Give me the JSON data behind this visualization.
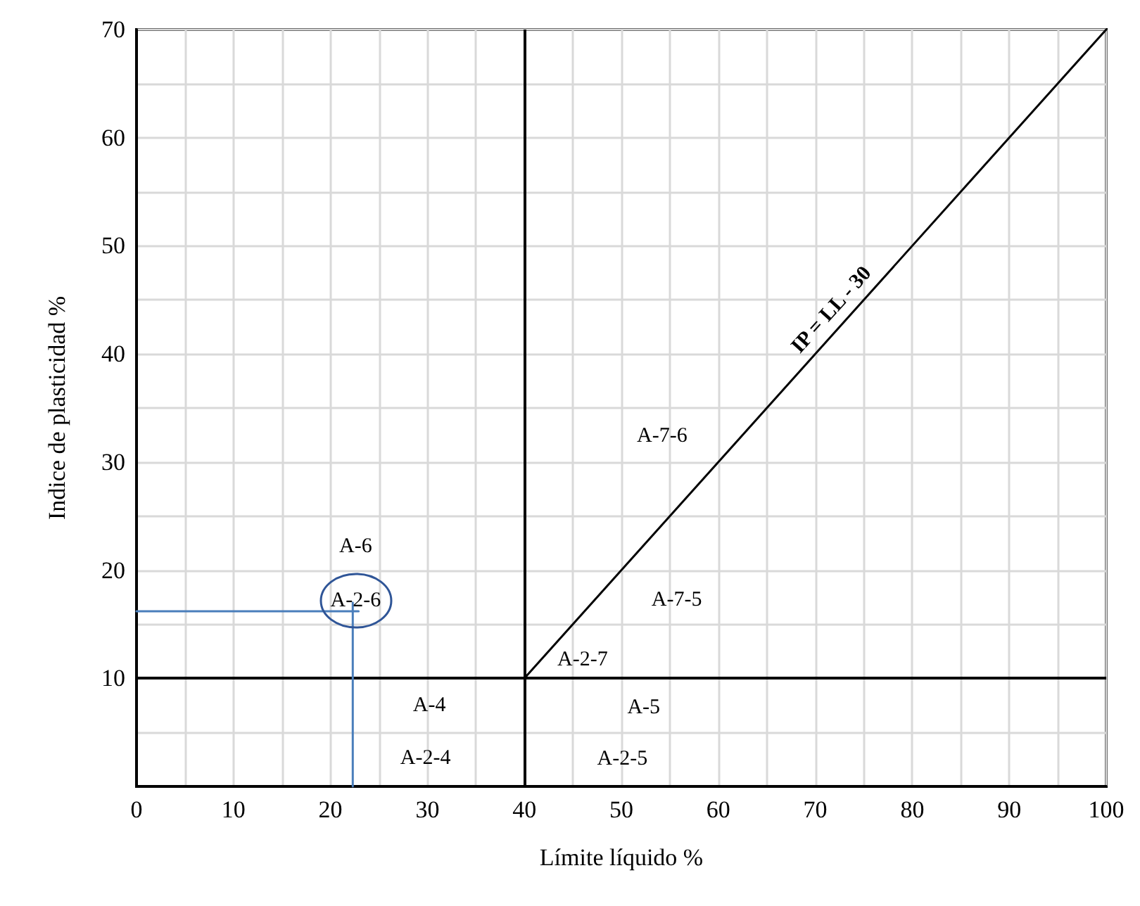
{
  "chart_data": {
    "type": "line",
    "xlabel": "Límite líquido %",
    "ylabel": "Indice de plasticidad %",
    "xlim": [
      0,
      100
    ],
    "ylim": [
      0,
      70
    ],
    "xticks": [
      0,
      {
        "value": 5,
        "label": null
      },
      10,
      {
        "value": 15,
        "label": null
      },
      20,
      {
        "value": 25,
        "label": null
      },
      30,
      {
        "value": 35,
        "label": null
      },
      40,
      {
        "value": 45,
        "label": null
      },
      50,
      {
        "value": 55,
        "label": null
      },
      60,
      {
        "value": 65,
        "label": null
      },
      70,
      {
        "value": 75,
        "label": null
      },
      80,
      {
        "value": 85,
        "label": null
      },
      90,
      {
        "value": 95,
        "label": null
      },
      100
    ],
    "yticks": [
      {
        "value": 0,
        "label": null
      },
      {
        "value": 5,
        "label": null
      },
      10,
      {
        "value": 15,
        "label": null
      },
      20,
      {
        "value": 25,
        "label": null
      },
      30,
      {
        "value": 35,
        "label": null
      },
      40,
      {
        "value": 45,
        "label": null
      },
      50,
      {
        "value": 55,
        "label": null
      },
      60,
      {
        "value": 65,
        "label": null
      },
      70
    ],
    "grid": true,
    "marker": "none",
    "line_style": "solid",
    "series": [
      {
        "name": "IP = LL - 30",
        "color": "#000000",
        "x": [
          40,
          100
        ],
        "values": [
          10,
          70
        ]
      },
      {
        "color": "#4a7ebb",
        "x": [
          0,
          22.9
        ],
        "values": [
          16.2,
          16.2
        ]
      },
      {
        "color": "#4a7ebb",
        "x": [
          22.3,
          22.3
        ],
        "values": [
          0,
          17
        ]
      }
    ],
    "ref_lines": [
      {
        "axis": "x",
        "value": 40,
        "color": "#000000"
      },
      {
        "axis": "y",
        "value": 10,
        "color": "#000000"
      }
    ],
    "annotations": [
      "A-6",
      {
        "text": "A-2-6",
        "x": 22.6,
        "y": 17.2
      },
      "A-4",
      "A-2-4",
      "A-2-7",
      "A-5",
      "A-2-5",
      "A-7-6",
      "A-7-5"
    ]
  }
}
